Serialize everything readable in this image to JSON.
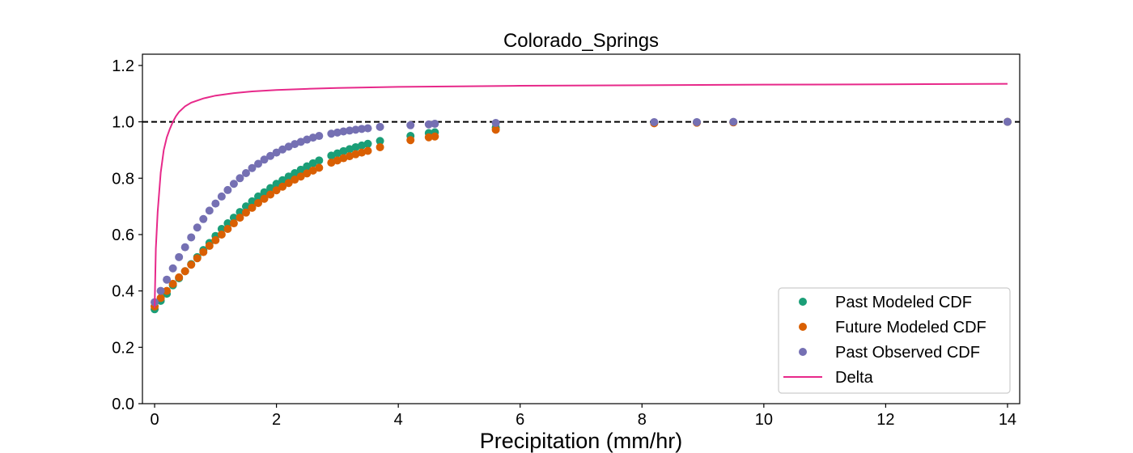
{
  "chart_data": {
    "type": "scatter",
    "title": "Colorado_Springs",
    "xlabel": "Precipitation (mm/hr)",
    "ylabel": "",
    "xlim": [
      -0.2,
      14.2
    ],
    "ylim": [
      0.0,
      1.24
    ],
    "xticks": [
      0,
      2,
      4,
      6,
      8,
      10,
      12,
      14
    ],
    "xtick_labels": [
      "0",
      "2",
      "4",
      "6",
      "8",
      "10",
      "12",
      "14"
    ],
    "yticks": [
      0.0,
      0.2,
      0.4,
      0.6,
      0.8,
      1.0,
      1.2
    ],
    "ytick_labels": [
      "0.0",
      "0.2",
      "0.4",
      "0.6",
      "0.8",
      "1.0",
      "1.2"
    ],
    "grid": false,
    "legend_position": "bottom-right",
    "reference_line": {
      "y": 1.0,
      "style": "dashed",
      "color": "#000000"
    },
    "series": [
      {
        "name": "Past Modeled CDF",
        "kind": "scatter",
        "color": "#1b9e77",
        "x": [
          0.0,
          0.1,
          0.2,
          0.3,
          0.4,
          0.5,
          0.6,
          0.7,
          0.8,
          0.9,
          1.0,
          1.1,
          1.2,
          1.3,
          1.4,
          1.5,
          1.6,
          1.7,
          1.8,
          1.9,
          2.0,
          2.1,
          2.2,
          2.3,
          2.4,
          2.5,
          2.6,
          2.7,
          2.9,
          3.0,
          3.1,
          3.2,
          3.3,
          3.4,
          3.5,
          3.7,
          4.2,
          4.5,
          4.6,
          5.6,
          8.2,
          8.9,
          9.5,
          14.0
        ],
        "y": [
          0.335,
          0.365,
          0.39,
          0.42,
          0.445,
          0.47,
          0.495,
          0.52,
          0.545,
          0.57,
          0.595,
          0.62,
          0.64,
          0.66,
          0.68,
          0.7,
          0.718,
          0.735,
          0.75,
          0.765,
          0.78,
          0.793,
          0.806,
          0.818,
          0.83,
          0.842,
          0.853,
          0.863,
          0.88,
          0.888,
          0.896,
          0.903,
          0.91,
          0.916,
          0.922,
          0.932,
          0.95,
          0.96,
          0.963,
          0.98,
          0.997,
          0.998,
          0.999,
          1.0
        ]
      },
      {
        "name": "Future Modeled CDF",
        "kind": "scatter",
        "color": "#d95f02",
        "x": [
          0.0,
          0.1,
          0.2,
          0.3,
          0.4,
          0.5,
          0.6,
          0.7,
          0.8,
          0.9,
          1.0,
          1.1,
          1.2,
          1.3,
          1.4,
          1.5,
          1.6,
          1.7,
          1.8,
          1.9,
          2.0,
          2.1,
          2.2,
          2.3,
          2.4,
          2.5,
          2.6,
          2.7,
          2.9,
          3.0,
          3.1,
          3.2,
          3.3,
          3.4,
          3.5,
          3.7,
          4.2,
          4.5,
          4.6,
          5.6,
          8.2,
          8.9,
          9.5,
          14.0
        ],
        "y": [
          0.345,
          0.375,
          0.4,
          0.425,
          0.448,
          0.47,
          0.493,
          0.516,
          0.538,
          0.56,
          0.58,
          0.6,
          0.62,
          0.64,
          0.66,
          0.678,
          0.695,
          0.712,
          0.727,
          0.742,
          0.757,
          0.77,
          0.783,
          0.795,
          0.806,
          0.817,
          0.827,
          0.837,
          0.855,
          0.863,
          0.871,
          0.878,
          0.885,
          0.891,
          0.897,
          0.91,
          0.935,
          0.945,
          0.948,
          0.972,
          0.995,
          0.997,
          0.998,
          1.0
        ]
      },
      {
        "name": "Past Observed CDF",
        "kind": "scatter",
        "color": "#7570b3",
        "x": [
          0.0,
          0.1,
          0.2,
          0.3,
          0.4,
          0.5,
          0.6,
          0.7,
          0.8,
          0.9,
          1.0,
          1.1,
          1.2,
          1.3,
          1.4,
          1.5,
          1.6,
          1.7,
          1.8,
          1.9,
          2.0,
          2.1,
          2.2,
          2.3,
          2.4,
          2.5,
          2.6,
          2.7,
          2.9,
          3.0,
          3.1,
          3.2,
          3.3,
          3.4,
          3.5,
          3.7,
          4.2,
          4.5,
          4.6,
          5.6,
          8.2,
          8.9,
          9.5,
          14.0
        ],
        "y": [
          0.36,
          0.4,
          0.44,
          0.48,
          0.52,
          0.555,
          0.59,
          0.625,
          0.655,
          0.685,
          0.71,
          0.735,
          0.758,
          0.78,
          0.8,
          0.818,
          0.836,
          0.851,
          0.866,
          0.879,
          0.891,
          0.902,
          0.912,
          0.921,
          0.929,
          0.937,
          0.944,
          0.95,
          0.958,
          0.962,
          0.966,
          0.969,
          0.972,
          0.975,
          0.977,
          0.982,
          0.988,
          0.991,
          0.993,
          0.996,
          0.999,
          0.999,
          1.0,
          1.0
        ]
      },
      {
        "name": "Delta",
        "kind": "line",
        "color": "#e7298a",
        "x": [
          0.0,
          0.02,
          0.05,
          0.1,
          0.15,
          0.2,
          0.25,
          0.3,
          0.35,
          0.4,
          0.5,
          0.6,
          0.8,
          1.0,
          1.3,
          1.6,
          2.0,
          2.5,
          3.0,
          4.0,
          5.0,
          6.0,
          8.0,
          10.0,
          12.0,
          14.0
        ],
        "y": [
          0.34,
          0.55,
          0.68,
          0.82,
          0.9,
          0.945,
          0.975,
          1.0,
          1.02,
          1.035,
          1.055,
          1.068,
          1.083,
          1.093,
          1.102,
          1.108,
          1.113,
          1.117,
          1.12,
          1.124,
          1.126,
          1.128,
          1.13,
          1.132,
          1.133,
          1.135
        ]
      }
    ]
  }
}
